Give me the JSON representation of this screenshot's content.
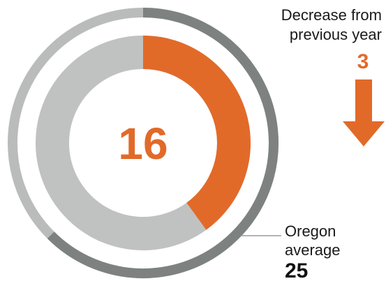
{
  "chart_data": {
    "type": "donut",
    "value": 16,
    "max": 40,
    "center_label": "16",
    "average": 25,
    "average_label": "Oregon average",
    "average_value_text": "25",
    "change_label": "Decrease from previous year",
    "change_value": 3,
    "change_value_text": "3",
    "change_direction": "decrease"
  },
  "colors": {
    "accent": "#E26A29",
    "inner_track": "#C0C2C1",
    "outer_track_light": "#BABCBB",
    "outer_track_dark": "#7D8281"
  },
  "icons": {
    "arrow": "arrow-down-icon"
  }
}
